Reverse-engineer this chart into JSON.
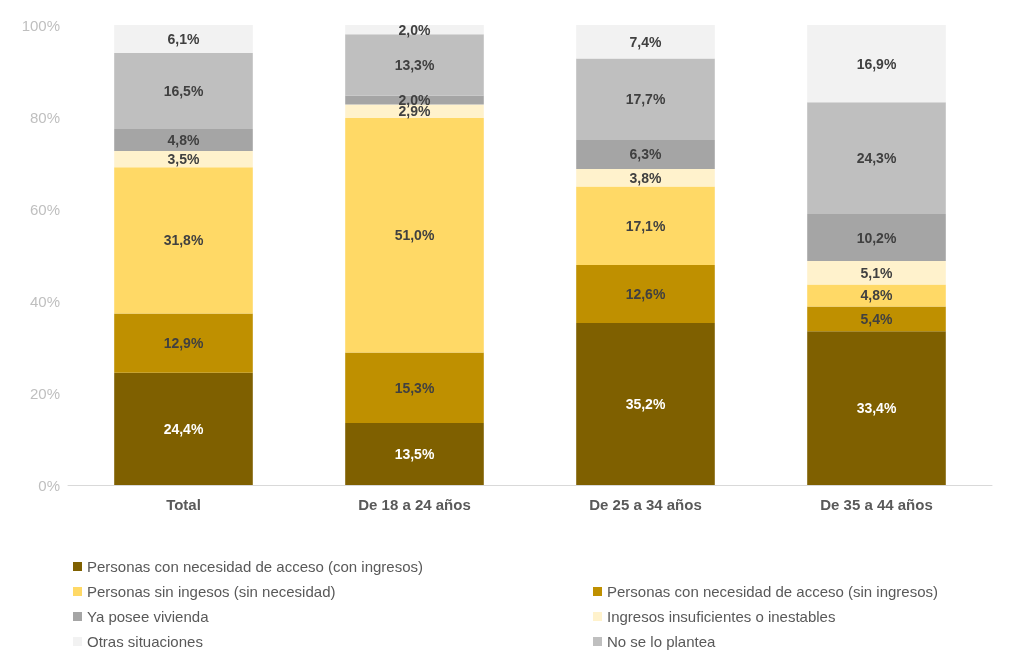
{
  "chart_data": {
    "type": "bar",
    "stacked": true,
    "categories": [
      "Total",
      "De 18 a 24 años",
      "De 25 a 34 años",
      "De 35 a 44 años"
    ],
    "ylim": [
      0,
      100
    ],
    "yticks": [
      {
        "value": 0,
        "label": "0%"
      },
      {
        "value": 20,
        "label": "20%"
      },
      {
        "value": 40,
        "label": "40%"
      },
      {
        "value": 60,
        "label": "60%"
      },
      {
        "value": 80,
        "label": "80%"
      },
      {
        "value": 100,
        "label": "100%"
      }
    ],
    "grid": false,
    "legend": "bottom",
    "series": [
      {
        "name": "Personas con necesidad de acceso (con ingresos)",
        "color": "#7f6000",
        "values": [
          24.4,
          13.5,
          35.2,
          33.4
        ],
        "value_labels": [
          "24,4%",
          "13,5%",
          "35,2%",
          "33,4%"
        ]
      },
      {
        "name": "Personas con necesidad de acceso (sin ingresos)",
        "color": "#bf9000",
        "values": [
          12.9,
          15.3,
          12.6,
          5.4
        ],
        "value_labels": [
          "12,9%",
          "15,3%",
          "12,6%",
          "5,4%"
        ]
      },
      {
        "name": "Personas sin ingesos (sin necesidad)",
        "color": "#ffd966",
        "values": [
          31.8,
          51.0,
          17.1,
          4.8
        ],
        "value_labels": [
          "31,8%",
          "51,0%",
          "17,1%",
          "4,8%"
        ]
      },
      {
        "name": "Ingresos insuficientes o inestables",
        "color": "#fff2cc",
        "values": [
          3.5,
          2.9,
          3.8,
          5.1
        ],
        "value_labels": [
          "3,5%",
          "2,9%",
          "3,8%",
          "5,1%"
        ]
      },
      {
        "name": "Ya posee vivienda",
        "color": "#a5a5a5",
        "values": [
          4.8,
          2.0,
          6.3,
          10.2
        ],
        "value_labels": [
          "4,8%",
          "2,0%",
          "6,3%",
          "10,2%"
        ]
      },
      {
        "name": "No se lo plantea",
        "color": "#bfbfbf",
        "values": [
          16.5,
          13.3,
          17.7,
          24.3
        ],
        "value_labels": [
          "16,5%",
          "13,3%",
          "17,7%",
          "24,3%"
        ]
      },
      {
        "name": "Otras situaciones",
        "color": "#f2f2f2",
        "values": [
          6.1,
          2.0,
          7.4,
          16.9
        ],
        "value_labels": [
          "6,1%",
          "2,0%",
          "7,4%",
          "16,9%"
        ]
      }
    ]
  }
}
